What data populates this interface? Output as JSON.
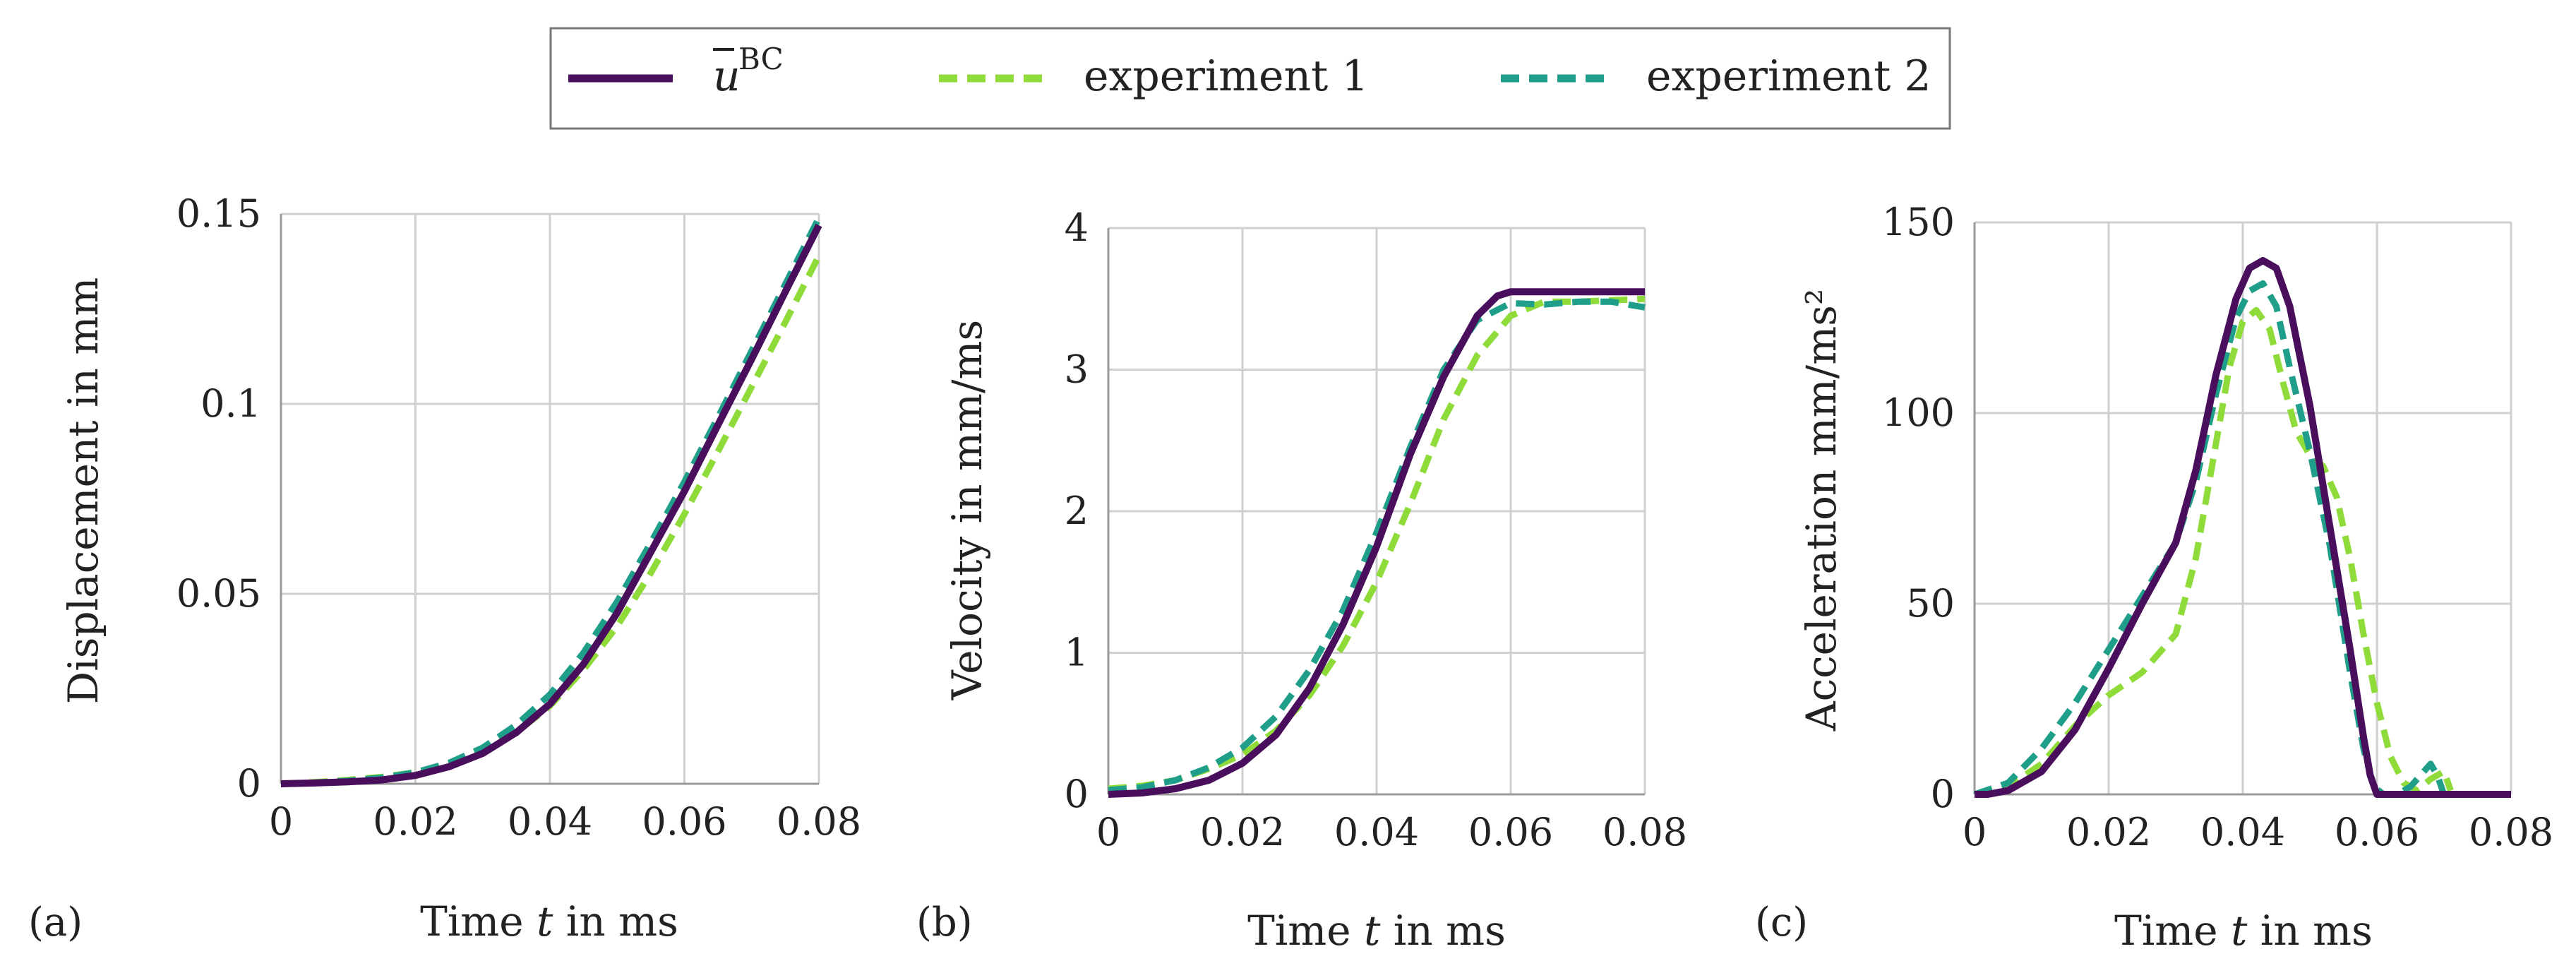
{
  "legend": {
    "entries": [
      {
        "label_base": "u",
        "label_sup": "BC",
        "style": "solid",
        "color": "#4a0f5c"
      },
      {
        "label": "experiment 1",
        "style": "dashed",
        "color": "#8fdb3a"
      },
      {
        "label": "experiment 2",
        "style": "dashed",
        "color": "#1f9e89"
      }
    ]
  },
  "chart_data": [
    {
      "type": "line",
      "panel_label": "(a)",
      "xlabel_prefix": "Time ",
      "xlabel_var": "t",
      "xlabel_suffix": " in ms",
      "ylabel": "Displacement in mm",
      "xlim": [
        0,
        0.08
      ],
      "ylim": [
        0,
        0.15
      ],
      "xticks": [
        0,
        0.02,
        0.04,
        0.06,
        0.08
      ],
      "xtick_labels": [
        "0",
        "0.02",
        "0.04",
        "0.06",
        "0.08"
      ],
      "yticks": [
        0,
        0.05,
        0.1,
        0.15
      ],
      "ytick_labels": [
        "0",
        "0.05",
        "0.1",
        "0.15"
      ],
      "grid": true,
      "series": [
        {
          "name": "uBC",
          "x": [
            0,
            0.005,
            0.01,
            0.015,
            0.02,
            0.025,
            0.03,
            0.035,
            0.04,
            0.045,
            0.05,
            0.055,
            0.06,
            0.065,
            0.07,
            0.075,
            0.08
          ],
          "values": [
            0,
            0.0002,
            0.0005,
            0.001,
            0.0022,
            0.0045,
            0.008,
            0.0135,
            0.021,
            0.0315,
            0.045,
            0.061,
            0.077,
            0.0945,
            0.1118,
            0.1295,
            0.147
          ]
        },
        {
          "name": "experiment 1",
          "x": [
            0,
            0.005,
            0.01,
            0.015,
            0.02,
            0.025,
            0.03,
            0.035,
            0.04,
            0.045,
            0.05,
            0.055,
            0.06,
            0.065,
            0.07,
            0.075,
            0.08
          ],
          "values": [
            0,
            0.0004,
            0.001,
            0.0018,
            0.003,
            0.005,
            0.0085,
            0.0135,
            0.0205,
            0.03,
            0.0415,
            0.0555,
            0.071,
            0.0875,
            0.1045,
            0.1215,
            0.139
          ]
        },
        {
          "name": "experiment 2",
          "x": [
            0,
            0.005,
            0.01,
            0.015,
            0.02,
            0.025,
            0.03,
            0.035,
            0.04,
            0.045,
            0.05,
            0.055,
            0.06,
            0.065,
            0.07,
            0.075,
            0.08
          ],
          "values": [
            0,
            0.0003,
            0.0008,
            0.0016,
            0.003,
            0.0055,
            0.0095,
            0.0155,
            0.0235,
            0.0345,
            0.048,
            0.0635,
            0.0795,
            0.0965,
            0.114,
            0.1315,
            0.149
          ]
        }
      ]
    },
    {
      "type": "line",
      "panel_label": "(b)",
      "xlabel_prefix": "Time ",
      "xlabel_var": "t",
      "xlabel_suffix": " in ms",
      "ylabel": "Velocity in mm/ms",
      "xlim": [
        0,
        0.08
      ],
      "ylim": [
        0,
        4
      ],
      "xticks": [
        0,
        0.02,
        0.04,
        0.06,
        0.08
      ],
      "xtick_labels": [
        "0",
        "0.02",
        "0.04",
        "0.06",
        "0.08"
      ],
      "yticks": [
        0,
        1,
        2,
        3,
        4
      ],
      "ytick_labels": [
        "0",
        "1",
        "2",
        "3",
        "4"
      ],
      "grid": true,
      "series": [
        {
          "name": "uBC",
          "x": [
            0,
            0.005,
            0.01,
            0.015,
            0.02,
            0.025,
            0.03,
            0.035,
            0.04,
            0.045,
            0.05,
            0.055,
            0.058,
            0.06,
            0.065,
            0.07,
            0.075,
            0.08
          ],
          "values": [
            0,
            0.01,
            0.04,
            0.1,
            0.22,
            0.42,
            0.75,
            1.2,
            1.75,
            2.4,
            2.95,
            3.38,
            3.52,
            3.55,
            3.55,
            3.55,
            3.55,
            3.55
          ]
        },
        {
          "name": "experiment 1",
          "x": [
            0,
            0.005,
            0.01,
            0.015,
            0.02,
            0.025,
            0.03,
            0.035,
            0.04,
            0.045,
            0.05,
            0.055,
            0.06,
            0.065,
            0.07,
            0.075,
            0.08
          ],
          "values": [
            0.04,
            0.06,
            0.1,
            0.18,
            0.28,
            0.45,
            0.7,
            1.05,
            1.5,
            2.05,
            2.65,
            3.1,
            3.38,
            3.48,
            3.48,
            3.49,
            3.5
          ]
        },
        {
          "name": "experiment 2",
          "x": [
            0,
            0.005,
            0.01,
            0.015,
            0.02,
            0.025,
            0.03,
            0.035,
            0.04,
            0.045,
            0.05,
            0.055,
            0.06,
            0.065,
            0.07,
            0.075,
            0.08
          ],
          "values": [
            0.03,
            0.05,
            0.1,
            0.19,
            0.33,
            0.55,
            0.88,
            1.3,
            1.85,
            2.45,
            3.0,
            3.35,
            3.47,
            3.46,
            3.48,
            3.48,
            3.44
          ]
        }
      ]
    },
    {
      "type": "line",
      "panel_label": "(c)",
      "xlabel_prefix": "Time ",
      "xlabel_var": "t",
      "xlabel_suffix": " in ms",
      "ylabel": "Acceleration mm/ms²",
      "xlim": [
        0,
        0.08
      ],
      "ylim": [
        0,
        150
      ],
      "xticks": [
        0,
        0.02,
        0.04,
        0.06,
        0.08
      ],
      "xtick_labels": [
        "0",
        "0.02",
        "0.04",
        "0.06",
        "0.08"
      ],
      "yticks": [
        0,
        50,
        100,
        150
      ],
      "ytick_labels": [
        "0",
        "50",
        "100",
        "150"
      ],
      "grid": true,
      "series": [
        {
          "name": "uBC",
          "x": [
            0,
            0.002,
            0.005,
            0.01,
            0.015,
            0.02,
            0.025,
            0.03,
            0.033,
            0.036,
            0.039,
            0.041,
            0.043,
            0.045,
            0.047,
            0.05,
            0.053,
            0.056,
            0.058,
            0.059,
            0.06,
            0.065,
            0.07,
            0.08
          ],
          "values": [
            0,
            0,
            1,
            6,
            17,
            33,
            50,
            66,
            85,
            110,
            130,
            138,
            140,
            138,
            128,
            102,
            70,
            38,
            15,
            5,
            0,
            0,
            0,
            0
          ]
        },
        {
          "name": "experiment 1",
          "x": [
            0,
            0.005,
            0.01,
            0.015,
            0.02,
            0.025,
            0.03,
            0.033,
            0.036,
            0.038,
            0.04,
            0.042,
            0.044,
            0.046,
            0.048,
            0.05,
            0.052,
            0.054,
            0.056,
            0.058,
            0.06,
            0.062,
            0.064,
            0.066,
            0.068,
            0.07,
            0.071
          ],
          "values": [
            0,
            2,
            8,
            18,
            26,
            32,
            42,
            62,
            92,
            112,
            124,
            127,
            122,
            108,
            95,
            89,
            86,
            78,
            62,
            42,
            24,
            10,
            3,
            1,
            4,
            6,
            1
          ]
        },
        {
          "name": "experiment 2",
          "x": [
            0,
            0.005,
            0.01,
            0.015,
            0.02,
            0.025,
            0.03,
            0.033,
            0.036,
            0.039,
            0.041,
            0.043,
            0.045,
            0.047,
            0.05,
            0.053,
            0.056,
            0.058,
            0.0595,
            0.061,
            0.063,
            0.065,
            0.067,
            0.068,
            0.069,
            0.07
          ],
          "values": [
            0,
            3,
            12,
            24,
            38,
            52,
            66,
            82,
            105,
            125,
            132,
            134,
            128,
            112,
            90,
            65,
            32,
            12,
            2,
            0,
            0,
            2,
            6,
            8,
            5,
            0
          ]
        }
      ]
    }
  ]
}
